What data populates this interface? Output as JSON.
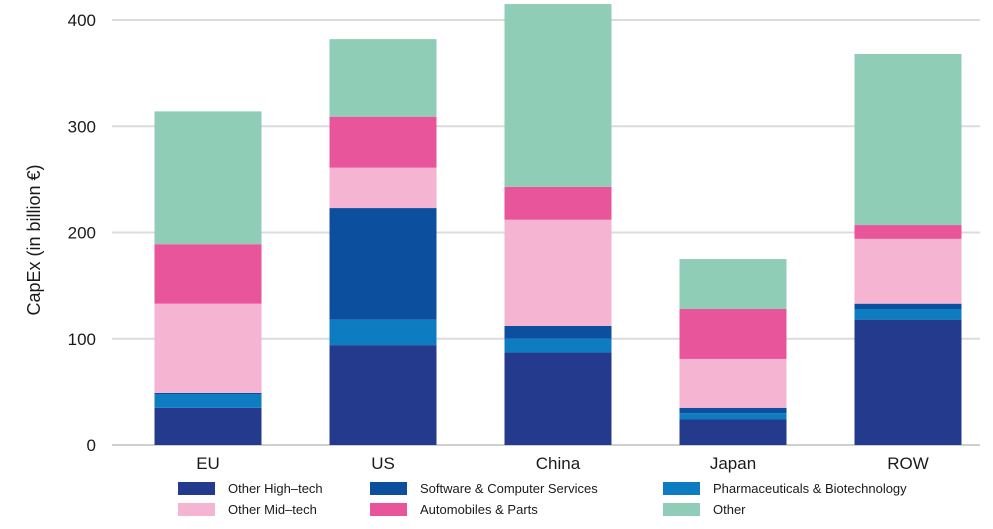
{
  "chart_data": {
    "type": "bar",
    "stacked": true,
    "title": "",
    "xlabel": "",
    "ylabel": "CapEx (in billion €)",
    "ylim": [
      0,
      420
    ],
    "yticks": [
      0,
      100,
      200,
      300,
      400
    ],
    "grid": "horizontal",
    "legend_position": "bottom",
    "categories": [
      "EU",
      "US",
      "China",
      "Japan",
      "ROW"
    ],
    "series": [
      {
        "name": "Other High–tech",
        "color": "#243a8c",
        "values": [
          35,
          94,
          87,
          24,
          118
        ]
      },
      {
        "name": "Pharmaceuticals & Biotechnology",
        "color": "#0d7cc1",
        "values": [
          13,
          24,
          13,
          6,
          10
        ]
      },
      {
        "name": "Software & Computer Services",
        "color": "#0b4f9e",
        "values": [
          1,
          105,
          12,
          5,
          5
        ]
      },
      {
        "name": "Other Mid–tech",
        "color": "#f4b4d2",
        "values": [
          84,
          38,
          100,
          46,
          61
        ]
      },
      {
        "name": "Automobiles & Parts",
        "color": "#e8559a",
        "values": [
          56,
          48,
          31,
          47,
          13
        ]
      },
      {
        "name": "Other",
        "color": "#8fcdb7",
        "values": [
          125,
          73,
          172,
          47,
          161
        ]
      }
    ]
  },
  "legend": {
    "rows": [
      [
        "Other High–tech",
        "Software & Computer Services",
        "Pharmaceuticals & Biotechnology"
      ],
      [
        "Other Mid–tech",
        "Automobiles & Parts",
        "Other"
      ]
    ]
  }
}
